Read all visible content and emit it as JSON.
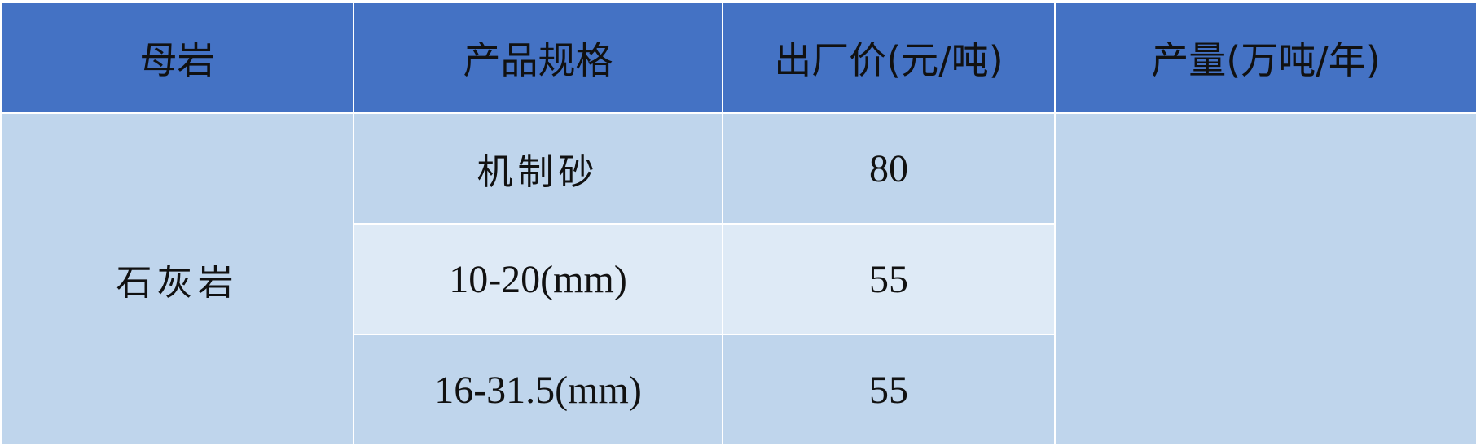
{
  "table": {
    "headers": [
      "母岩",
      "产品规格",
      "出厂价(元/吨)",
      "产量(万吨/年)"
    ],
    "rock": "石灰岩",
    "rows": [
      {
        "spec": "机制砂",
        "price": "80"
      },
      {
        "spec": "10-20(mm)",
        "price": "55"
      },
      {
        "spec": "16-31.5(mm)",
        "price": "55"
      }
    ],
    "output": ""
  },
  "colors": {
    "header": "#4472C4",
    "body": "#BFD5EC",
    "body_light": "#DEEAF6"
  }
}
